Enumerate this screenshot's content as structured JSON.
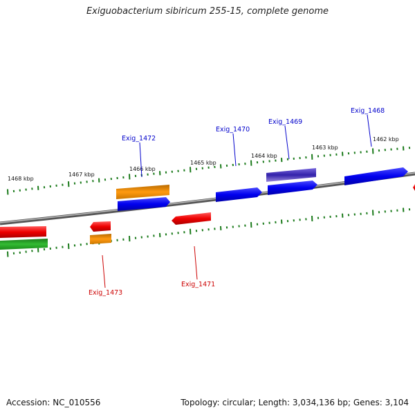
{
  "title": "Exiguobacterium sibiricum 255-15, complete genome",
  "footer": {
    "accession": "Accession: NC_010556",
    "summary": "Topology: circular; Length: 3,034,136 bp; Genes: 3,104"
  },
  "colors": {
    "backbone": "#7a7a7a",
    "tick": "#1a7a1a",
    "forward_label": "#0000cc",
    "reverse_label": "#cc0000",
    "blue": "#0000ee",
    "red": "#ee0000",
    "orange": "#ee8800",
    "green": "#22aa22",
    "purple": "#5544bb"
  },
  "scale_labels": [
    "1468 kbp",
    "1467 kbp",
    "1466 kbp",
    "1465 kbp",
    "1464 kbp",
    "1463 kbp",
    "1462 kbp"
  ],
  "gene_labels": [
    {
      "text": "Exig_1472",
      "strand": "forward"
    },
    {
      "text": "Exig_1470",
      "strand": "forward"
    },
    {
      "text": "Exig_1469",
      "strand": "forward"
    },
    {
      "text": "Exig_1468",
      "strand": "forward"
    },
    {
      "text": "Exig_1473",
      "strand": "reverse"
    },
    {
      "text": "Exig_1471",
      "strand": "reverse"
    }
  ]
}
